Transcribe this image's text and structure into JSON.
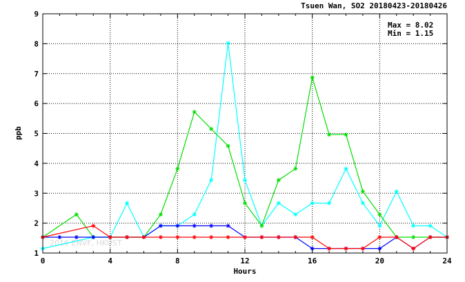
{
  "chart_data": {
    "type": "line",
    "title": "Tsuen Wan, SO2 20180423-20180426",
    "xlabel": "Hours",
    "ylabel": "ppb",
    "xlim": [
      0,
      24
    ],
    "ylim": [
      1,
      9
    ],
    "xticks": [
      0,
      4,
      8,
      12,
      16,
      20,
      24
    ],
    "yticks": [
      1,
      2,
      3,
      4,
      5,
      6,
      7,
      8,
      9
    ],
    "grid": true,
    "stats": {
      "max_label": "Max = 8.02",
      "min_label": "Min = 1.15"
    },
    "watermark": "2016 ENVF, HKUST",
    "x": [
      0,
      1,
      2,
      3,
      4,
      5,
      6,
      7,
      8,
      9,
      10,
      11,
      12,
      13,
      14,
      15,
      16,
      17,
      18,
      19,
      20,
      21,
      22,
      23,
      24
    ],
    "series": [
      {
        "color": "#00ffff",
        "x": [
          0,
          3,
          4,
          5,
          6,
          7,
          8,
          9,
          10,
          11,
          12,
          13,
          14,
          15,
          16,
          17,
          18,
          19,
          20,
          21,
          22,
          23,
          24
        ],
        "values": [
          1.15,
          1.53,
          1.53,
          2.67,
          1.53,
          1.91,
          1.91,
          2.29,
          3.44,
          8.02,
          3.44,
          1.91,
          2.67,
          2.29,
          2.67,
          2.67,
          3.82,
          2.67,
          1.91,
          3.06,
          1.91,
          1.91,
          1.53
        ]
      },
      {
        "color": "#00dd00",
        "x": [
          0,
          2,
          3,
          4,
          5,
          6,
          7,
          8,
          9,
          10,
          11,
          12,
          13,
          14,
          15,
          16,
          17,
          18,
          19,
          20,
          21,
          22,
          23,
          24
        ],
        "values": [
          1.53,
          2.29,
          1.53,
          1.53,
          1.53,
          1.53,
          2.29,
          3.82,
          5.72,
          5.15,
          4.58,
          2.67,
          1.91,
          3.44,
          3.82,
          6.87,
          4.96,
          4.96,
          3.06,
          2.29,
          1.53,
          1.53,
          1.53,
          1.53
        ]
      },
      {
        "color": "#0000ff",
        "x": [
          0,
          1,
          2,
          3,
          4,
          5,
          6,
          7,
          8,
          9,
          10,
          11,
          12,
          13,
          14,
          15,
          16,
          17,
          18,
          19,
          20,
          21,
          22,
          23,
          24
        ],
        "values": [
          1.53,
          1.53,
          1.53,
          1.53,
          1.53,
          1.53,
          1.53,
          1.91,
          1.91,
          1.91,
          1.91,
          1.91,
          1.53,
          1.53,
          1.53,
          1.53,
          1.15,
          1.15,
          1.15,
          1.15,
          1.15,
          1.53,
          1.15,
          1.53,
          1.53
        ]
      },
      {
        "color": "#ff0000",
        "x": [
          0,
          3,
          4,
          5,
          6,
          7,
          8,
          9,
          10,
          11,
          12,
          13,
          14,
          15,
          16,
          17,
          18,
          19,
          20,
          21,
          22,
          23,
          24
        ],
        "values": [
          1.53,
          1.91,
          1.53,
          1.53,
          1.53,
          1.53,
          1.53,
          1.53,
          1.53,
          1.53,
          1.53,
          1.53,
          1.53,
          1.53,
          1.53,
          1.15,
          1.15,
          1.15,
          1.53,
          1.53,
          1.15,
          1.53,
          1.53
        ]
      }
    ]
  }
}
